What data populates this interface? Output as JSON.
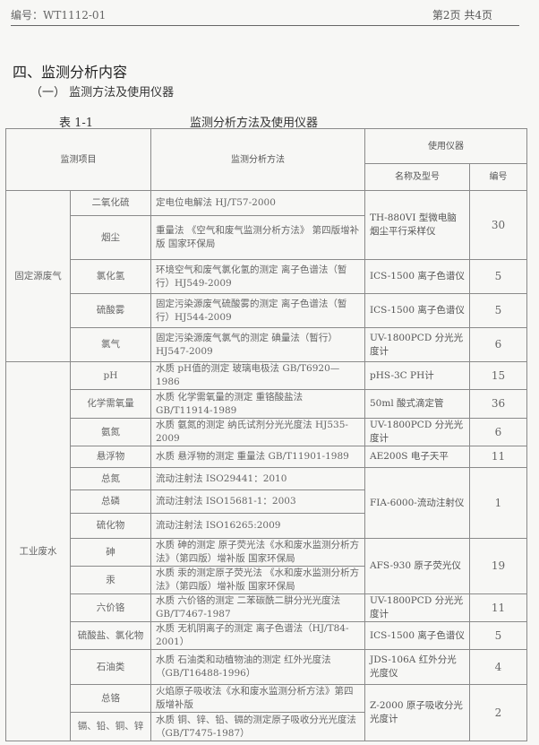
{
  "header": {
    "doc_number": "编号：WT1112-01",
    "page_info": "第2页  共4页"
  },
  "section_title": "四、监测分析内容",
  "subsection_title": "（一） 监测方法及使用仪器",
  "table_caption": {
    "number": "表 1-1",
    "title": "监测分析方法及使用仪器"
  },
  "table": {
    "headers": {
      "item": "监测项目",
      "method": "监测分析方法",
      "instrument": "使用仪器",
      "instrument_name": "名称及型号",
      "instrument_number": "编号"
    },
    "groups": [
      {
        "label": "固定源废气",
        "rows": [
          {
            "item": "二氧化硫",
            "method": "定电位电解法 HJ/T57-2000",
            "instrument": "TH-880VI 型微电脑烟尘平行采样仪",
            "number": "30"
          },
          {
            "item": "烟尘",
            "method": "重量法 《空气和废气监测分析方法》 第四版增补版 国家环保局",
            "instrument": null,
            "number": null
          },
          {
            "item": "氯化氢",
            "method": "环境空气和废气氯化氢的测定 离子色谱法（暂行）HJ549-2009",
            "instrument": "ICS-1500 离子色谱仪",
            "number": "5"
          },
          {
            "item": "硫酸雾",
            "method": "固定污染源废气硫酸雾的测定 离子色谱法（暂行）HJ544-2009",
            "instrument": "ICS-1500 离子色谱仪",
            "number": "5"
          },
          {
            "item": "氯气",
            "method": "固定污染源废气氯气的测定 碘量法（暂行）HJ547-2009",
            "instrument": "UV-1800PCD 分光光度计",
            "number": "6"
          }
        ]
      },
      {
        "label": "工业废水",
        "rows": [
          {
            "item": "pH",
            "method": "水质 pH值的测定 玻璃电极法 GB/T6920—1986",
            "instrument": "pHS-3C PH计",
            "number": "15"
          },
          {
            "item": "化学需氧量",
            "method": "水质 化学需氧量的测定 重铬酸盐法 GB/T11914-1989",
            "instrument": "50ml 酸式滴定管",
            "number": "36"
          },
          {
            "item": "氨氮",
            "method": "水质 氨氮的测定 纳氏试剂分光光度法 HJ535-2009",
            "instrument": "UV-1800PCD 分光光度计",
            "number": "6"
          },
          {
            "item": "悬浮物",
            "method": "水质 悬浮物的测定 重量法 GB/T11901-1989",
            "instrument": "AE200S 电子天平",
            "number": "11"
          },
          {
            "item": "总氮",
            "method": "流动注射法 ISO29441：2010",
            "instrument": "FIA-6000-流动注射仪",
            "number": "1"
          },
          {
            "item": "总磷",
            "method": "流动注射法 ISO15681-1：2003",
            "instrument": null,
            "number": null
          },
          {
            "item": "硫化物",
            "method": "流动注射法 ISO16265:2009",
            "instrument": null,
            "number": null
          },
          {
            "item": "砷",
            "method": "水质 砷的测定 原子荧光法《水和废水监测分析方法》（第四版）增补版 国家环保局",
            "instrument": "AFS-930 原子荧光仪",
            "number": "19"
          },
          {
            "item": "汞",
            "method": "水质 汞的测定原子荧光法 《水和废水监测分析方法》（第四版）增补版 国家环保局",
            "instrument": null,
            "number": null
          },
          {
            "item": "六价铬",
            "method": "水质 六价铬的测定 二苯碳酰二肼分光光度法 GB/T7467-1987",
            "instrument": "UV-1800PCD 分光光度计",
            "number": "11"
          },
          {
            "item": "硫酸盐、氯化物",
            "method": "水质 无机阴离子的测定 离子色谱法（HJ/T84-2001）",
            "instrument": "ICS-1500 离子色谱仪",
            "number": "5"
          },
          {
            "item": "石油类",
            "method": "水质 石油类和动植物油的测定 红外光度法（GB/T16488-1996）",
            "instrument": "JDS-106A 红外分光光度仪",
            "number": "4"
          },
          {
            "item": "总铬",
            "method": "火焰原子吸收法《水和废水监测分析方法》第四版增补版",
            "instrument": "Z-2000 原子吸收分光光度计",
            "number": "2"
          },
          {
            "item": "镉、铅、铜、锌",
            "method": "水质 铜、锌、铅、镉的测定原子吸收分光光度法（GB/T7475-1987）",
            "instrument": null,
            "number": null
          }
        ]
      }
    ]
  }
}
